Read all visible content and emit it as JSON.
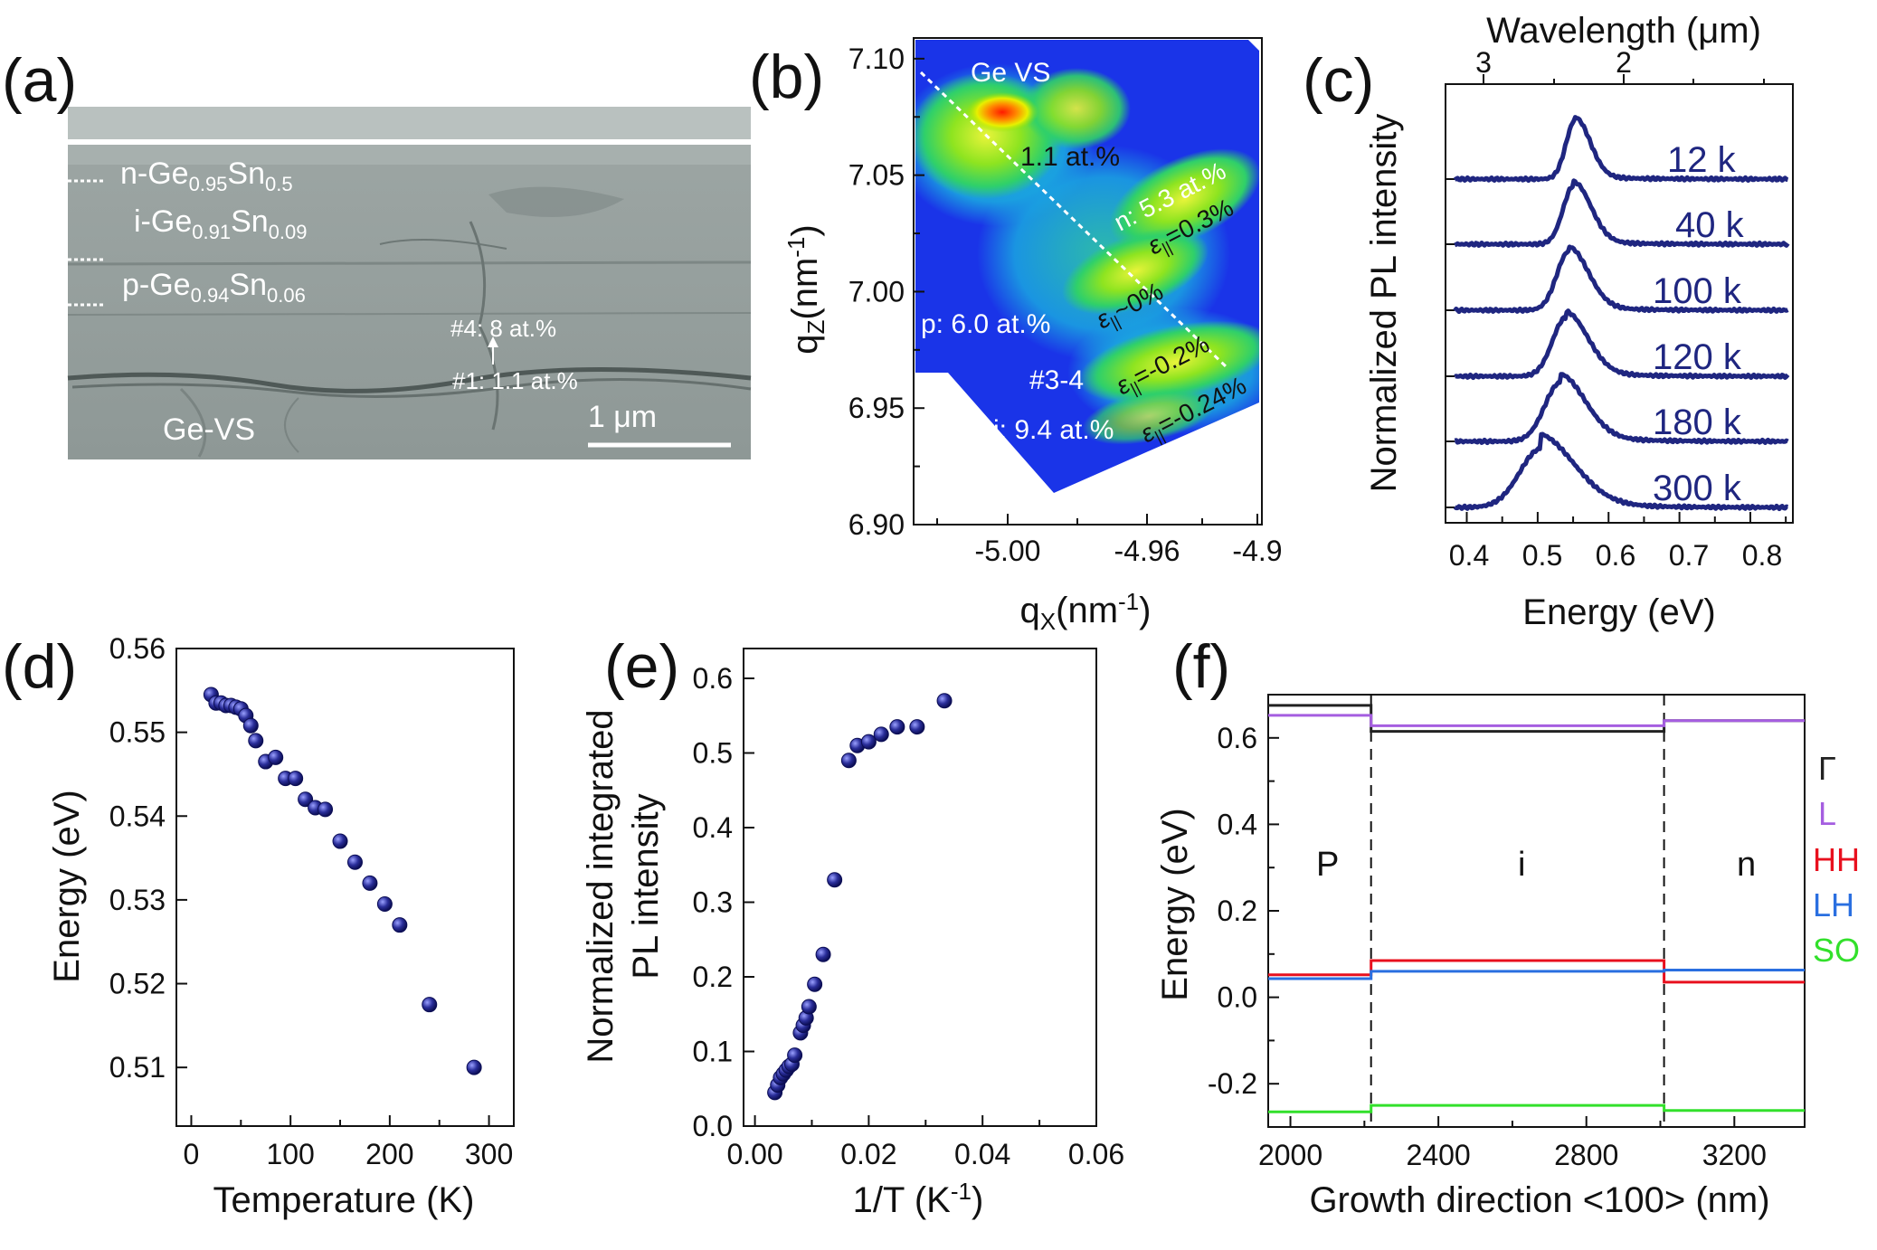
{
  "colors": {
    "marker": "#1c1f8a",
    "curve": "#1f2680",
    "Gamma": "#222222",
    "L": "#a55ee0",
    "HH": "#e8101e",
    "LH": "#2a6fe0",
    "SO": "#32e02b"
  },
  "panels": {
    "a": {
      "label": "(a)",
      "layers": [
        "n-Ge",
        "0.95",
        "Sn",
        "0.5",
        "i-Ge",
        "0.91",
        "Sn",
        "0.09",
        "p-Ge",
        "0.94",
        "Sn",
        "0.06"
      ],
      "annot_top": "#4:  8 at.%",
      "annot_bot": "#1: 1.1 at.%",
      "substrate": "Ge-VS",
      "scale": "1 μm"
    },
    "b": {
      "label": "(b)",
      "ylabel_main": "q",
      "ylabel_sub": "Z",
      "ylabel_unit": "(nm",
      "ylabel_exp": "-1",
      "ylabel_close": ")",
      "xlabel_main": "q",
      "xlabel_sub": "X",
      "xlabel_unit": "(nm",
      "xlabel_exp": "-1",
      "xlabel_close": ")",
      "yticks": [
        "6.90",
        "6.95",
        "7.00",
        "7.05",
        "7.10"
      ],
      "xticks": [
        "-5.00",
        "-4.96",
        "-4.9"
      ],
      "ann_gevs": "Ge VS",
      "ann_11": "1.1 at.%",
      "ann_n": "n: 5.3 at.%",
      "ann_p": "p: 6.0 at.%",
      "ann_34": "#3-4",
      "ann_i": "i: 9.4 at.%",
      "eps_sym": "ε",
      "eps_sub": "||",
      "eps1": "=0.3%",
      "eps2": "~0%",
      "eps3": "=-0.2%",
      "eps4": "=-0.24%"
    },
    "c": {
      "label": "(c)",
      "top_title": "Wavelength (μm)",
      "top_ticks": [
        "3",
        "2"
      ],
      "ylabel": "Normalized PL intensity",
      "xlabel": "Energy (eV)",
      "xticks": [
        "0.4",
        "0.5",
        "0.6",
        "0.7",
        "0.8"
      ],
      "curve_labels": [
        "12 k",
        "40 k",
        "100 k",
        "120 k",
        "180 k",
        "300 k"
      ]
    },
    "d": {
      "label": "(d)",
      "xlabel": "Temperature (K)",
      "ylabel": "Energy (eV)"
    },
    "e": {
      "label": "(e)",
      "xlabel": "1/T (K",
      "xlabel_exp": "-1",
      "xlabel_close": ")",
      "ylabel1": "Normalized integrated",
      "ylabel2": "PL intensity"
    },
    "f": {
      "label": "(f)",
      "xlabel": "Growth direction <100> (nm)",
      "ylabel": "Energy (eV)",
      "regions": [
        "P",
        "i",
        "n"
      ],
      "legend": [
        "Γ",
        "L",
        "HH",
        "LH",
        "SO"
      ]
    }
  },
  "chart_data": [
    {
      "id": "c",
      "type": "line",
      "title": "",
      "xlabel": "Energy (eV)",
      "ylabel": "Normalized PL intensity",
      "xlim": [
        0.37,
        0.86
      ],
      "series": [
        {
          "name": "12 k",
          "peak": 0.553,
          "width": 0.013,
          "amp": 1.0,
          "tail": 0.05
        },
        {
          "name": "40 k",
          "peak": 0.551,
          "width": 0.015,
          "amp": 1.0,
          "tail": 0.06
        },
        {
          "name": "100 k",
          "peak": 0.544,
          "width": 0.017,
          "amp": 1.0,
          "tail": 0.08
        },
        {
          "name": "120 k",
          "peak": 0.54,
          "width": 0.019,
          "amp": 1.0,
          "tail": 0.1
        },
        {
          "name": "180 k",
          "peak": 0.532,
          "width": 0.022,
          "amp": 1.0,
          "tail": 0.15
        },
        {
          "name": "300 k",
          "peak": 0.505,
          "width": 0.03,
          "amp": 1.0,
          "tail": 0.25
        }
      ]
    },
    {
      "id": "d",
      "type": "scatter",
      "title": "",
      "xlabel": "Temperature (K)",
      "ylabel": "Energy (eV)",
      "xlim": [
        -15,
        325
      ],
      "ylim": [
        0.503,
        0.56
      ],
      "xticks": [
        0,
        100,
        200,
        300
      ],
      "yticks": [
        0.51,
        0.52,
        0.53,
        0.54,
        0.55,
        0.56
      ],
      "x": [
        20,
        25,
        30,
        35,
        40,
        45,
        50,
        55,
        60,
        65,
        75,
        85,
        95,
        105,
        115,
        125,
        135,
        150,
        165,
        180,
        195,
        210,
        240,
        285
      ],
      "y": [
        0.5545,
        0.5535,
        0.5535,
        0.5532,
        0.5532,
        0.553,
        0.5528,
        0.552,
        0.5508,
        0.549,
        0.5465,
        0.547,
        0.5445,
        0.5445,
        0.542,
        0.541,
        0.5408,
        0.537,
        0.5345,
        0.532,
        0.5295,
        0.527,
        0.5175,
        0.51
      ]
    },
    {
      "id": "e",
      "type": "scatter",
      "title": "",
      "xlabel": "1/T (K^-1)",
      "ylabel": "Normalized integrated PL intensity",
      "xlim": [
        -0.002,
        0.06
      ],
      "ylim": [
        0.0,
        0.64
      ],
      "xticks": [
        0.0,
        0.02,
        0.04,
        0.06
      ],
      "yticks": [
        0.0,
        0.1,
        0.2,
        0.3,
        0.4,
        0.5,
        0.6
      ],
      "x": [
        0.0035,
        0.004,
        0.0045,
        0.005,
        0.0055,
        0.006,
        0.0065,
        0.007,
        0.008,
        0.0085,
        0.009,
        0.0095,
        0.0105,
        0.012,
        0.014,
        0.0165,
        0.018,
        0.02,
        0.0222,
        0.025,
        0.0285,
        0.0333
      ],
      "y": [
        0.045,
        0.055,
        0.065,
        0.07,
        0.075,
        0.08,
        0.083,
        0.095,
        0.125,
        0.135,
        0.145,
        0.16,
        0.19,
        0.23,
        0.33,
        0.49,
        0.51,
        0.515,
        0.525,
        0.535,
        0.535,
        0.57
      ]
    },
    {
      "id": "f",
      "type": "line",
      "title": "",
      "xlabel": "Growth direction <100> (nm)",
      "ylabel": "Energy (eV)",
      "xlim": [
        1940,
        3390
      ],
      "ylim": [
        -0.3,
        0.7
      ],
      "xticks": [
        2000,
        2400,
        2800,
        3200
      ],
      "yticks": [
        -0.2,
        0.0,
        0.2,
        0.4,
        0.6
      ],
      "boundaries": [
        2218,
        3010
      ],
      "series": [
        {
          "name": "Γ",
          "segments": [
            [
              1940,
              2218,
              0.675
            ],
            [
              2218,
              3010,
              0.615
            ],
            [
              3010,
              3390,
              0.64
            ]
          ]
        },
        {
          "name": "L",
          "segments": [
            [
              1940,
              2218,
              0.652
            ],
            [
              2218,
              3010,
              0.628
            ],
            [
              3010,
              3390,
              0.64
            ]
          ]
        },
        {
          "name": "HH",
          "segments": [
            [
              1940,
              2218,
              0.052
            ],
            [
              2218,
              3010,
              0.085
            ],
            [
              3010,
              3390,
              0.035
            ]
          ]
        },
        {
          "name": "LH",
          "segments": [
            [
              1940,
              2218,
              0.043
            ],
            [
              2218,
              3010,
              0.06
            ],
            [
              3010,
              3390,
              0.063
            ]
          ]
        },
        {
          "name": "SO",
          "segments": [
            [
              1940,
              2218,
              -0.265
            ],
            [
              2218,
              3010,
              -0.25
            ],
            [
              3010,
              3390,
              -0.262
            ]
          ]
        }
      ]
    }
  ]
}
